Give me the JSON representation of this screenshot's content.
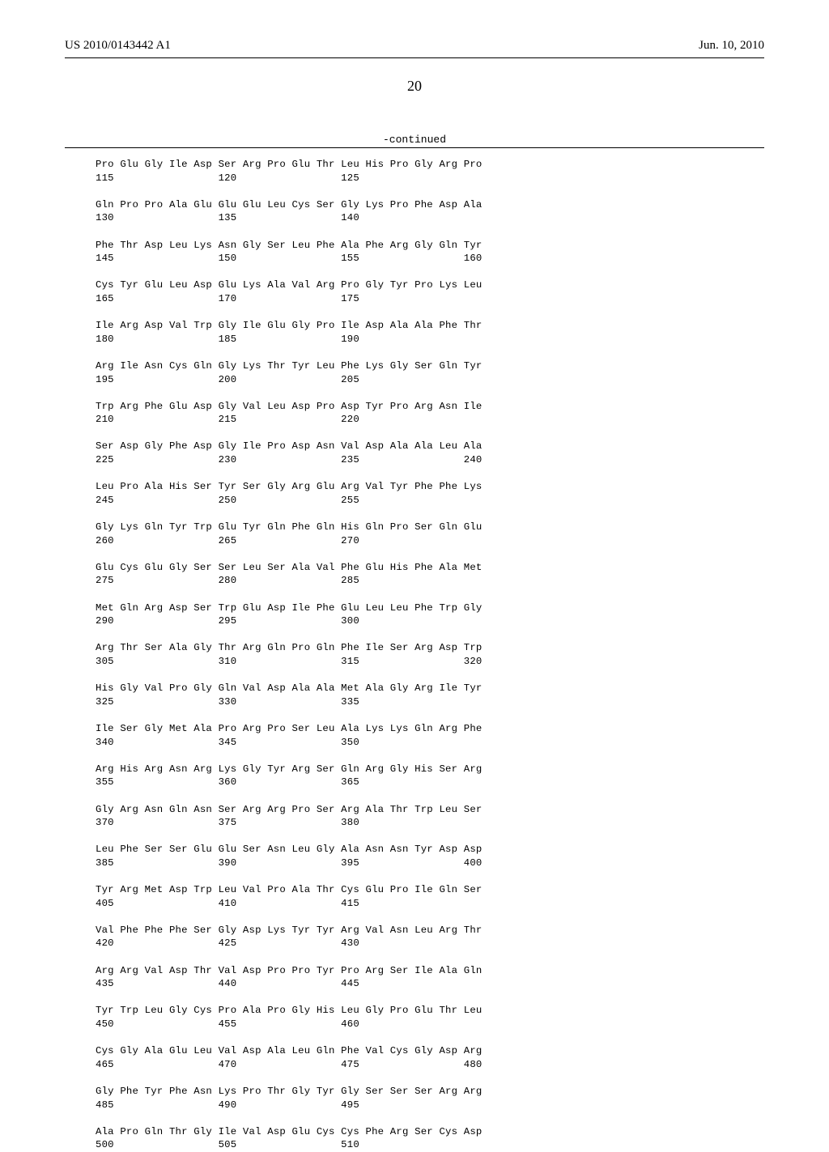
{
  "header": {
    "pub_number": "US 2010/0143442 A1",
    "pub_date": "Jun. 10, 2010"
  },
  "page_number": "20",
  "continued_label": "-continued",
  "sequence_rows": [
    {
      "aa": "Pro Glu Gly Ile Asp Ser Arg Pro Glu Thr Leu His Pro Gly Arg Pro",
      "nums": "115                 120                 125"
    },
    {
      "aa": "Gln Pro Pro Ala Glu Glu Glu Leu Cys Ser Gly Lys Pro Phe Asp Ala",
      "nums": "130                 135                 140"
    },
    {
      "aa": "Phe Thr Asp Leu Lys Asn Gly Ser Leu Phe Ala Phe Arg Gly Gln Tyr",
      "nums": "145                 150                 155                 160"
    },
    {
      "aa": "Cys Tyr Glu Leu Asp Glu Lys Ala Val Arg Pro Gly Tyr Pro Lys Leu",
      "nums": "165                 170                 175"
    },
    {
      "aa": "Ile Arg Asp Val Trp Gly Ile Glu Gly Pro Ile Asp Ala Ala Phe Thr",
      "nums": "180                 185                 190"
    },
    {
      "aa": "Arg Ile Asn Cys Gln Gly Lys Thr Tyr Leu Phe Lys Gly Ser Gln Tyr",
      "nums": "195                 200                 205"
    },
    {
      "aa": "Trp Arg Phe Glu Asp Gly Val Leu Asp Pro Asp Tyr Pro Arg Asn Ile",
      "nums": "210                 215                 220"
    },
    {
      "aa": "Ser Asp Gly Phe Asp Gly Ile Pro Asp Asn Val Asp Ala Ala Leu Ala",
      "nums": "225                 230                 235                 240"
    },
    {
      "aa": "Leu Pro Ala His Ser Tyr Ser Gly Arg Glu Arg Val Tyr Phe Phe Lys",
      "nums": "245                 250                 255"
    },
    {
      "aa": "Gly Lys Gln Tyr Trp Glu Tyr Gln Phe Gln His Gln Pro Ser Gln Glu",
      "nums": "260                 265                 270"
    },
    {
      "aa": "Glu Cys Glu Gly Ser Ser Leu Ser Ala Val Phe Glu His Phe Ala Met",
      "nums": "275                 280                 285"
    },
    {
      "aa": "Met Gln Arg Asp Ser Trp Glu Asp Ile Phe Glu Leu Leu Phe Trp Gly",
      "nums": "290                 295                 300"
    },
    {
      "aa": "Arg Thr Ser Ala Gly Thr Arg Gln Pro Gln Phe Ile Ser Arg Asp Trp",
      "nums": "305                 310                 315                 320"
    },
    {
      "aa": "His Gly Val Pro Gly Gln Val Asp Ala Ala Met Ala Gly Arg Ile Tyr",
      "nums": "325                 330                 335"
    },
    {
      "aa": "Ile Ser Gly Met Ala Pro Arg Pro Ser Leu Ala Lys Lys Gln Arg Phe",
      "nums": "340                 345                 350"
    },
    {
      "aa": "Arg His Arg Asn Arg Lys Gly Tyr Arg Ser Gln Arg Gly His Ser Arg",
      "nums": "355                 360                 365"
    },
    {
      "aa": "Gly Arg Asn Gln Asn Ser Arg Arg Pro Ser Arg Ala Thr Trp Leu Ser",
      "nums": "370                 375                 380"
    },
    {
      "aa": "Leu Phe Ser Ser Glu Glu Ser Asn Leu Gly Ala Asn Asn Tyr Asp Asp",
      "nums": "385                 390                 395                 400"
    },
    {
      "aa": "Tyr Arg Met Asp Trp Leu Val Pro Ala Thr Cys Glu Pro Ile Gln Ser",
      "nums": "405                 410                 415"
    },
    {
      "aa": "Val Phe Phe Phe Ser Gly Asp Lys Tyr Tyr Arg Val Asn Leu Arg Thr",
      "nums": "420                 425                 430"
    },
    {
      "aa": "Arg Arg Val Asp Thr Val Asp Pro Pro Tyr Pro Arg Ser Ile Ala Gln",
      "nums": "435                 440                 445"
    },
    {
      "aa": "Tyr Trp Leu Gly Cys Pro Ala Pro Gly His Leu Gly Pro Glu Thr Leu",
      "nums": "450                 455                 460"
    },
    {
      "aa": "Cys Gly Ala Glu Leu Val Asp Ala Leu Gln Phe Val Cys Gly Asp Arg",
      "nums": "465                 470                 475                 480"
    },
    {
      "aa": "Gly Phe Tyr Phe Asn Lys Pro Thr Gly Tyr Gly Ser Ser Ser Arg Arg",
      "nums": "485                 490                 495"
    },
    {
      "aa": "Ala Pro Gln Thr Gly Ile Val Asp Glu Cys Cys Phe Arg Ser Cys Asp",
      "nums": "500                 505                 510"
    }
  ]
}
